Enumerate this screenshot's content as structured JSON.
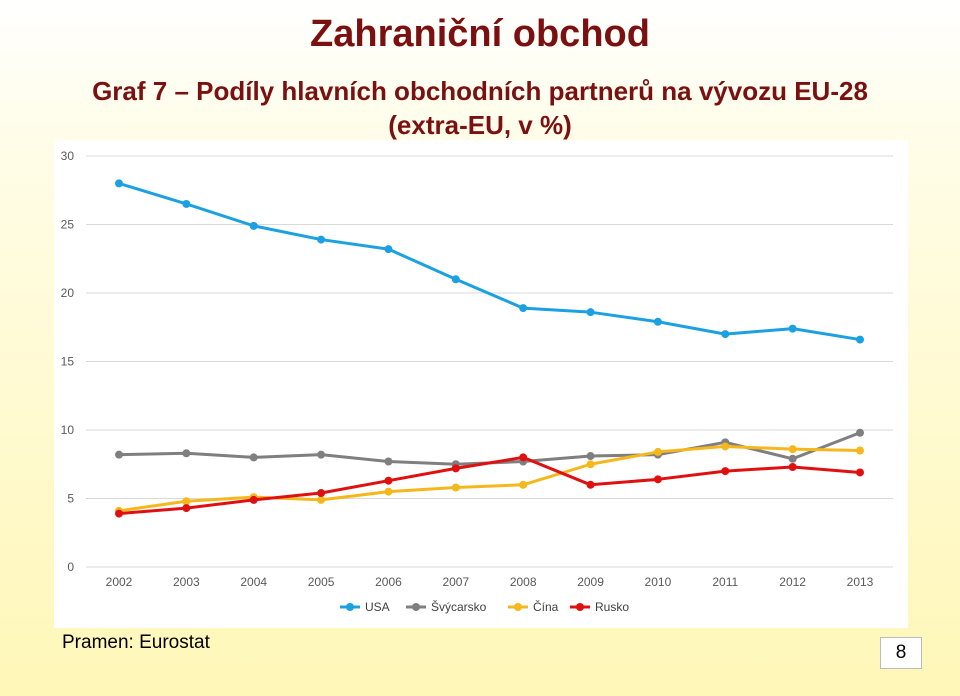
{
  "slide": {
    "title": "Zahraniční obchod",
    "subtitle_line1": "Graf 7 – Podíly hlavních obchodních partnerů na vývozu EU-28",
    "subtitle_line2": "(extra-EU, v %)",
    "source": "Pramen: Eurostat",
    "page_number": "8"
  },
  "chart_data": {
    "type": "line",
    "title": "",
    "xlabel": "",
    "ylabel": "",
    "x": [
      "2002",
      "2003",
      "2004",
      "2005",
      "2006",
      "2007",
      "2008",
      "2009",
      "2010",
      "2011",
      "2012",
      "2013"
    ],
    "ylim": [
      0,
      30
    ],
    "yticks": [
      0,
      5,
      10,
      15,
      20,
      25,
      30
    ],
    "grid": true,
    "legend": "bottom",
    "series": [
      {
        "name": "USA",
        "color": "#1ba1e2",
        "values": [
          28.0,
          26.5,
          24.9,
          23.9,
          23.2,
          21.0,
          18.9,
          18.6,
          17.9,
          17.0,
          17.4,
          16.6
        ]
      },
      {
        "name": "Švýcarsko",
        "color": "#7f7f7f",
        "values": [
          8.2,
          8.3,
          8.0,
          8.2,
          7.7,
          7.5,
          7.7,
          8.1,
          8.2,
          9.1,
          7.9,
          9.8
        ]
      },
      {
        "name": "Čína",
        "color": "#f5b81c",
        "values": [
          4.1,
          4.8,
          5.1,
          4.9,
          5.5,
          5.8,
          6.0,
          7.5,
          8.4,
          8.8,
          8.6,
          8.5
        ]
      },
      {
        "name": "Rusko",
        "color": "#e01010",
        "values": [
          3.9,
          4.3,
          4.9,
          5.4,
          6.3,
          7.2,
          8.0,
          6.0,
          6.4,
          7.0,
          7.3,
          6.9
        ]
      }
    ]
  }
}
